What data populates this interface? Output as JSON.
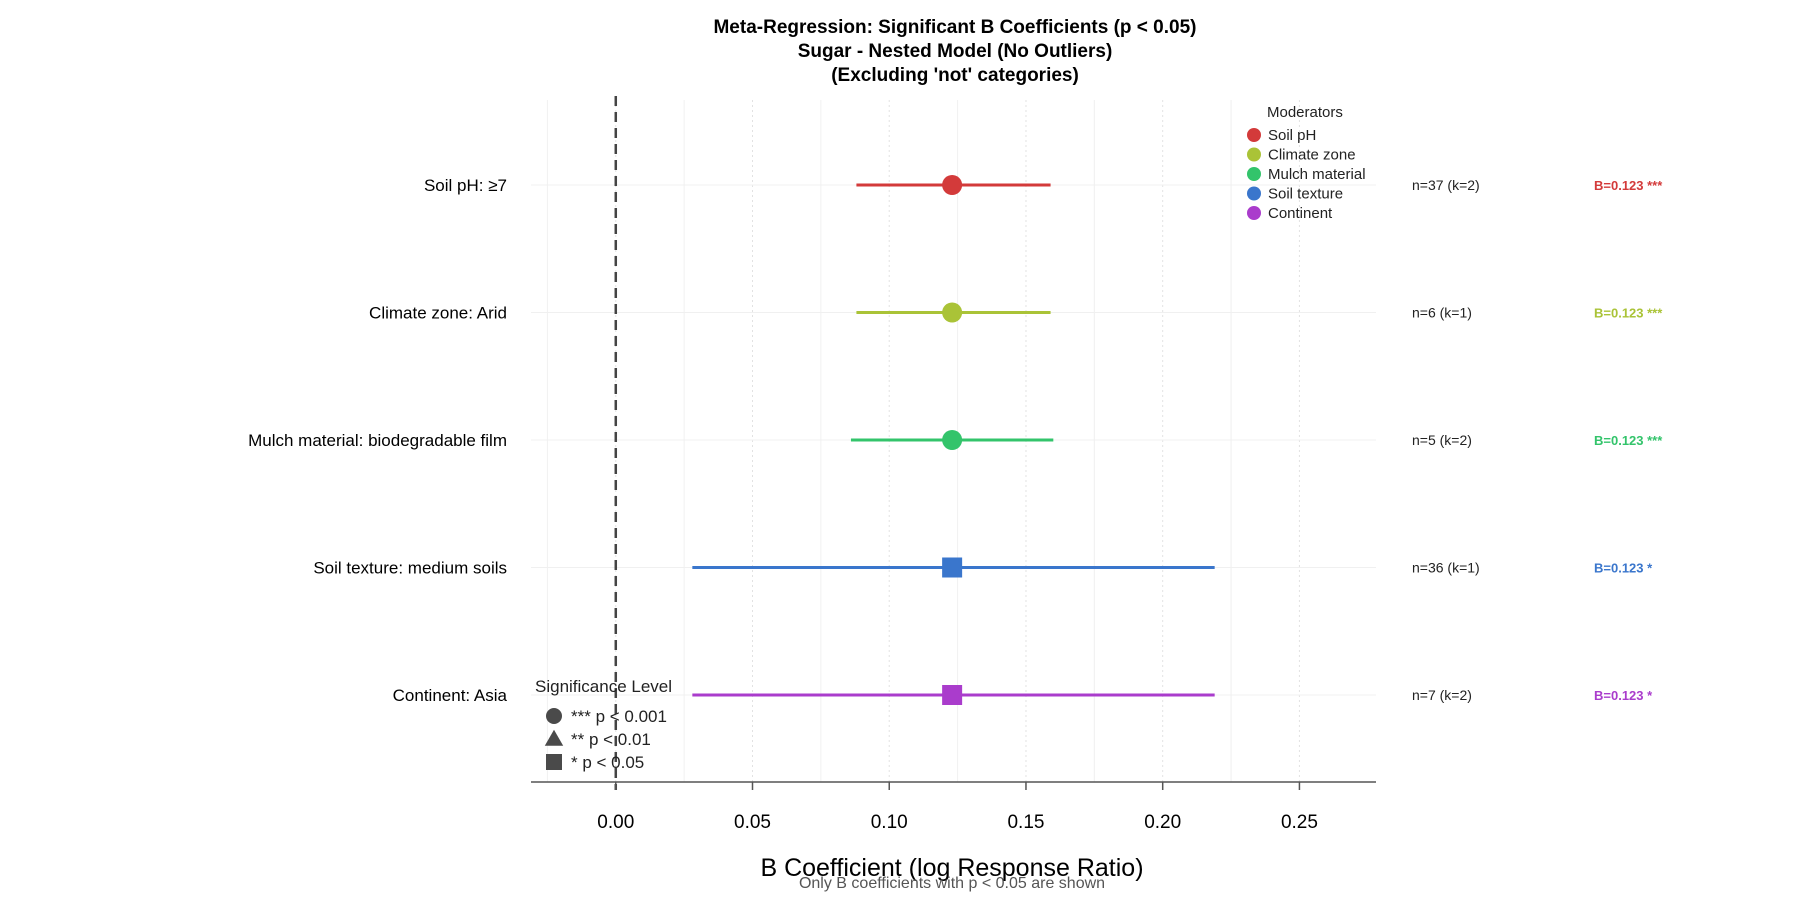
{
  "chart_data": {
    "type": "forest",
    "title_lines": [
      "Meta-Regression: Significant B Coefficients (p < 0.05)",
      "Sugar - Nested Model (No Outliers)",
      "(Excluding 'not' categories)"
    ],
    "xlabel": "B Coefficient (log Response Ratio)",
    "caption": "Only B coefficients with p < 0.05 are shown",
    "xlim": [
      -0.031,
      0.278
    ],
    "x_ticks": [
      0.0,
      0.05,
      0.1,
      0.15,
      0.2,
      0.25
    ],
    "x_tick_labels": [
      "0.00",
      "0.05",
      "0.10",
      "0.15",
      "0.20",
      "0.25"
    ],
    "reference_line": 0,
    "rows": [
      {
        "label": "Soil pH: ≥7",
        "moderator": "Soil pH",
        "estimate": 0.123,
        "ci_low": 0.088,
        "ci_high": 0.159,
        "shape": "circle",
        "n_label": "n=37 (k=2)",
        "b_label": "B=0.123 ***"
      },
      {
        "label": "Climate zone: Arid",
        "moderator": "Climate zone",
        "estimate": 0.123,
        "ci_low": 0.088,
        "ci_high": 0.159,
        "shape": "circle",
        "n_label": "n=6 (k=1)",
        "b_label": "B=0.123 ***"
      },
      {
        "label": "Mulch material: biodegradable film",
        "moderator": "Mulch material",
        "estimate": 0.123,
        "ci_low": 0.086,
        "ci_high": 0.16,
        "shape": "circle",
        "n_label": "n=5 (k=2)",
        "b_label": "B=0.123 ***"
      },
      {
        "label": "Soil texture: medium soils",
        "moderator": "Soil texture",
        "estimate": 0.123,
        "ci_low": 0.028,
        "ci_high": 0.219,
        "shape": "square",
        "n_label": "n=36 (k=1)",
        "b_label": "B=0.123 *"
      },
      {
        "label": "Continent: Asia",
        "moderator": "Continent",
        "estimate": 0.123,
        "ci_low": 0.028,
        "ci_high": 0.219,
        "shape": "square",
        "n_label": "n=7 (k=2)",
        "b_label": "B=0.123 *"
      }
    ],
    "legend_moderators": {
      "title": "Moderators",
      "placement": "top-right",
      "items": [
        {
          "name": "Soil pH",
          "color": "#d33a3a"
        },
        {
          "name": "Climate zone",
          "color": "#aac337"
        },
        {
          "name": "Mulch material",
          "color": "#33c46b"
        },
        {
          "name": "Soil texture",
          "color": "#3a76cc"
        },
        {
          "name": "Continent",
          "color": "#aa3ccc"
        }
      ]
    },
    "legend_significance": {
      "title": "Significance Level",
      "placement": "bottom-left",
      "items": [
        {
          "shape": "circle",
          "label": "*** p < 0.001"
        },
        {
          "shape": "triangle",
          "label": "** p < 0.01"
        },
        {
          "shape": "square",
          "label": "* p < 0.05"
        }
      ]
    },
    "grid": true
  }
}
